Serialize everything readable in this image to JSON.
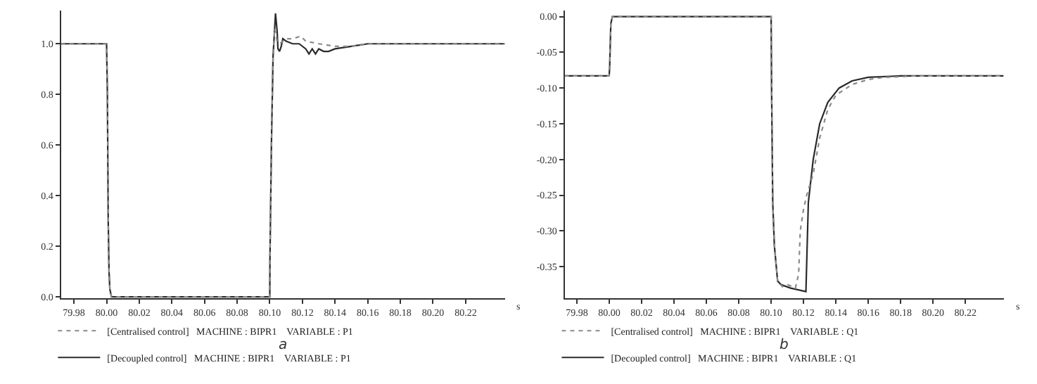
{
  "chart_data": [
    {
      "type": "line",
      "xlabel": "s",
      "annotations": [
        "a"
      ],
      "xlim": [
        79.972,
        80.244
      ],
      "xticks": [
        {
          "value": 79.98,
          "label": "79.98"
        },
        {
          "value": 80.0,
          "label": "80.00"
        },
        {
          "value": 80.02,
          "label": "80.02"
        },
        {
          "value": 80.04,
          "label": "80.04"
        },
        {
          "value": 80.06,
          "label": "80.06"
        },
        {
          "value": 80.08,
          "label": "80.08"
        },
        {
          "value": 80.1,
          "label": "80.10"
        },
        {
          "value": 80.12,
          "label": "80.12"
        },
        {
          "value": 80.14,
          "label": "80.14"
        },
        {
          "value": 80.16,
          "label": "80.16"
        },
        {
          "value": 80.18,
          "label": "80.18"
        },
        {
          "value": 80.2,
          "label": "80.20"
        },
        {
          "value": 80.22,
          "label": "80.22"
        }
      ],
      "ylim": [
        -0.005,
        1.13
      ],
      "yticks": [
        {
          "value": 0,
          "label": "0.0"
        },
        0.2,
        0.4,
        0.6,
        0.8,
        {
          "value": 1,
          "label": "1.0"
        }
      ],
      "grid": false,
      "legend": "bottom left",
      "marker": "none",
      "series": [
        {
          "name": "[Centralised control]   MACHINE : BIPR1    VARIABLE : P1",
          "color": "#8a8a8a",
          "line_style": "dotted",
          "x": [
            79.972,
            80.0,
            80.0005,
            80.001,
            80.0015,
            80.002,
            80.003,
            80.1,
            80.1001,
            80.101,
            80.102,
            80.103,
            80.1045,
            80.106,
            80.108,
            80.11,
            80.114,
            80.119,
            80.122,
            80.13,
            80.14,
            80.15,
            80.16,
            80.244
          ],
          "values": [
            1.0,
            1.0,
            0.8,
            0.3,
            0.1,
            0.03,
            0.0,
            0.0,
            0.15,
            0.6,
            0.95,
            1.06,
            1.01,
            1.0,
            1.01,
            1.02,
            1.02,
            1.03,
            1.01,
            1.0,
            0.99,
            0.99,
            1.0,
            1.0
          ]
        },
        {
          "name": "[Decoupled control]   MACHINE : BIPR1    VARIABLE : P1",
          "color": "#2a2a2a",
          "line_style": "solid",
          "x": [
            79.972,
            80.0,
            80.0005,
            80.001,
            80.0015,
            80.002,
            80.003,
            80.1,
            80.1001,
            80.101,
            80.102,
            80.1035,
            80.1045,
            80.105,
            80.106,
            80.107,
            80.108,
            80.11,
            80.114,
            80.118,
            80.122,
            80.124,
            80.126,
            80.128,
            80.13,
            80.133,
            80.136,
            80.14,
            80.15,
            80.16,
            80.244
          ],
          "values": [
            1.0,
            1.0,
            0.8,
            0.3,
            0.1,
            0.03,
            0.0,
            0.0,
            0.15,
            0.6,
            0.95,
            1.12,
            1.05,
            0.98,
            0.97,
            0.99,
            1.02,
            1.01,
            1.0,
            1.0,
            0.98,
            0.96,
            0.98,
            0.96,
            0.98,
            0.97,
            0.97,
            0.98,
            0.99,
            1.0,
            1.0
          ]
        }
      ]
    },
    {
      "type": "line",
      "xlabel": "s",
      "annotations": [
        "b"
      ],
      "xlim": [
        79.9725,
        80.2436
      ],
      "xticks": [
        {
          "value": 79.98,
          "label": "79.98"
        },
        {
          "value": 80.0,
          "label": "80.00"
        },
        {
          "value": 80.02,
          "label": "80.02"
        },
        {
          "value": 80.04,
          "label": "80.04"
        },
        {
          "value": 80.06,
          "label": "80.06"
        },
        {
          "value": 80.08,
          "label": "80.08"
        },
        {
          "value": 80.1,
          "label": "80.10"
        },
        {
          "value": 80.12,
          "label": "80.12"
        },
        {
          "value": 80.14,
          "label": "80.14"
        },
        {
          "value": 80.16,
          "label": "80.16"
        },
        {
          "value": 80.18,
          "label": "80.18"
        },
        {
          "value": 80.2,
          "label": "80.20"
        },
        {
          "value": 80.22,
          "label": "80.22"
        }
      ],
      "ylim": [
        -0.394,
        0.008
      ],
      "yticks": [
        {
          "value": -0.35,
          "label": "-0.35"
        },
        {
          "value": -0.3,
          "label": "-0.30"
        },
        {
          "value": -0.25,
          "label": "-0.25"
        },
        {
          "value": -0.2,
          "label": "-0.20"
        },
        {
          "value": -0.15,
          "label": "-0.15"
        },
        {
          "value": -0.1,
          "label": "-0.10"
        },
        {
          "value": -0.05,
          "label": "-0.05"
        },
        {
          "value": 0,
          "label": "0.00"
        }
      ],
      "grid": false,
      "legend": "bottom left",
      "marker": "none",
      "series": [
        {
          "name": "[Centralised control]   MACHINE : BIPR1    VARIABLE : Q1",
          "color": "#8a8a8a",
          "line_style": "dotted",
          "x": [
            79.9725,
            80.0,
            80.0003,
            80.001,
            80.002,
            80.1,
            80.1003,
            80.101,
            80.102,
            80.104,
            80.107,
            80.11,
            80.115,
            80.117,
            80.118,
            80.12,
            80.122,
            80.126,
            80.13,
            80.135,
            80.14,
            80.15,
            80.16,
            80.17,
            80.19,
            80.2436
          ],
          "values": [
            -0.083,
            -0.083,
            -0.07,
            -0.01,
            0.0,
            0.0,
            -0.1,
            -0.26,
            -0.32,
            -0.37,
            -0.378,
            -0.375,
            -0.38,
            -0.36,
            -0.3,
            -0.27,
            -0.25,
            -0.22,
            -0.17,
            -0.13,
            -0.11,
            -0.095,
            -0.088,
            -0.085,
            -0.083,
            -0.083
          ]
        },
        {
          "name": "[Decoupled control]   MACHINE : BIPR1    VARIABLE : Q1",
          "color": "#2a2a2a",
          "line_style": "solid",
          "x": [
            79.9725,
            80.0,
            80.0003,
            80.001,
            80.002,
            80.1,
            80.1003,
            80.101,
            80.102,
            80.104,
            80.106,
            80.112,
            80.1215,
            80.123,
            80.126,
            80.13,
            80.135,
            80.142,
            80.15,
            80.16,
            80.18,
            80.2436
          ],
          "values": [
            -0.083,
            -0.083,
            -0.07,
            -0.01,
            0.0,
            0.0,
            -0.1,
            -0.26,
            -0.32,
            -0.37,
            -0.375,
            -0.38,
            -0.385,
            -0.26,
            -0.2,
            -0.15,
            -0.12,
            -0.1,
            -0.09,
            -0.085,
            -0.083,
            -0.083
          ]
        }
      ]
    }
  ]
}
